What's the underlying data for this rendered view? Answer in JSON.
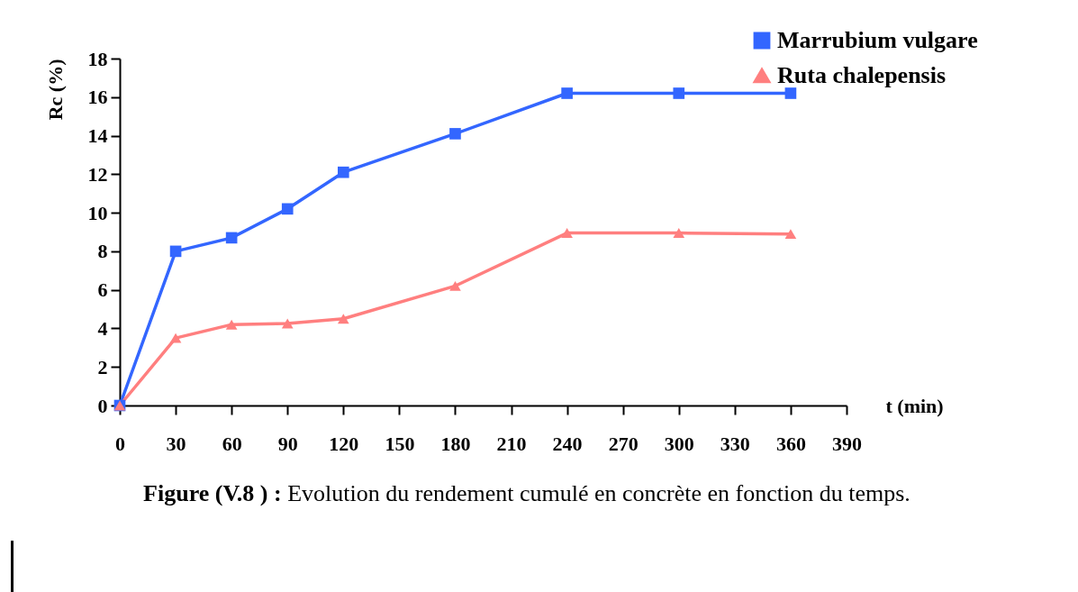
{
  "chart_data": {
    "type": "line",
    "xlabel": "t (min)",
    "ylabel": "Rc (%)",
    "x": [
      0,
      30,
      60,
      90,
      120,
      180,
      240,
      300,
      360
    ],
    "series": [
      {
        "name": "Marrubium vulgare",
        "color": "#3366ff",
        "marker": "square",
        "values": [
          0,
          8.0,
          8.7,
          10.2,
          12.1,
          14.1,
          16.2,
          16.2,
          16.2
        ]
      },
      {
        "name": "Ruta chalepensis",
        "color": "#ff7f7f",
        "marker": "triangle",
        "values": [
          0,
          3.5,
          4.2,
          4.25,
          4.5,
          6.2,
          8.95,
          8.95,
          8.9
        ]
      }
    ],
    "xlim": [
      0,
      390
    ],
    "xticks": [
      0,
      30,
      60,
      90,
      120,
      150,
      180,
      210,
      240,
      270,
      300,
      330,
      360,
      390
    ],
    "ylim": [
      0,
      18
    ],
    "yticks": [
      0,
      2,
      4,
      6,
      8,
      10,
      12,
      14,
      16,
      18
    ],
    "grid": false,
    "legend": "top right",
    "annotations": [
      "Figure (V.8 ) :",
      "Evolution du rendement cumulé en concrète en fonction du temps."
    ]
  }
}
